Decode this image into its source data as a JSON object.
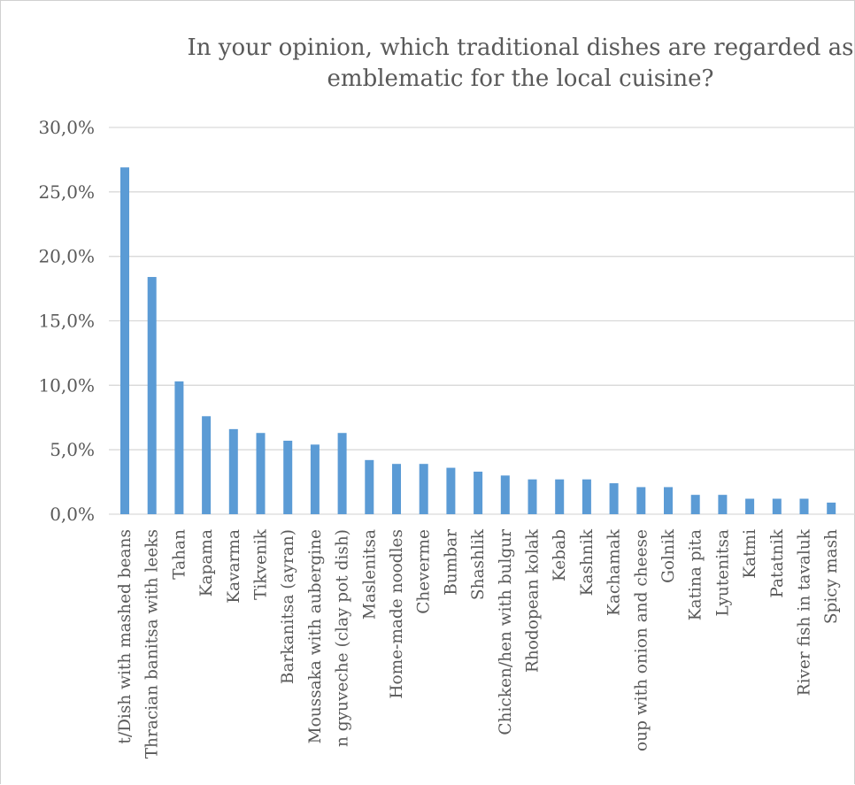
{
  "chart_data": {
    "type": "bar",
    "title_lines": [
      "In your opinion, which traditional dishes are regarded as",
      "emblematic for the local cuisine?"
    ],
    "xlabel": "",
    "ylabel": "",
    "ylim": [
      0,
      30
    ],
    "y_ticks": [
      {
        "value": 0,
        "label": "0,0%"
      },
      {
        "value": 5,
        "label": "5,0%"
      },
      {
        "value": 10,
        "label": "10,0%"
      },
      {
        "value": 15,
        "label": "15,0%"
      },
      {
        "value": 20,
        "label": "20,0%"
      },
      {
        "value": 25,
        "label": "25,0%"
      },
      {
        "value": 30,
        "label": "30,0%"
      }
    ],
    "categories": [
      "t/Dish with mashed beans",
      "Thracian banitsa with leeks",
      "Tahan",
      "Kapama",
      "Kavarma",
      "Tikvenik",
      "Barkanitsa (ayran)",
      "Moussaka with aubergine",
      "n gyuveche (clay pot dish)",
      "Maslenitsa",
      "Home-made noodles",
      "Cheverme",
      "Bumbar",
      "Shashlik",
      "Chicken/hen with bulgur",
      "Rhodopean kolak",
      "Kebab",
      "Kashnik",
      "Kachamak",
      "oup with onion and cheese",
      "Golnik",
      "Katina pita",
      "Lyutenitsa",
      "Katmi",
      "Patatnik",
      "River fish in tavaluk",
      "Spicy mash"
    ],
    "values": [
      26.9,
      18.4,
      10.3,
      7.6,
      6.6,
      6.3,
      5.7,
      5.4,
      6.3,
      4.2,
      3.9,
      3.9,
      3.6,
      3.3,
      3.0,
      2.7,
      2.7,
      2.7,
      2.4,
      2.1,
      2.1,
      1.5,
      1.5,
      1.2,
      1.2,
      1.2,
      0.9
    ],
    "grid": true,
    "legend": "none",
    "bar_color": "#5b9bd5"
  }
}
